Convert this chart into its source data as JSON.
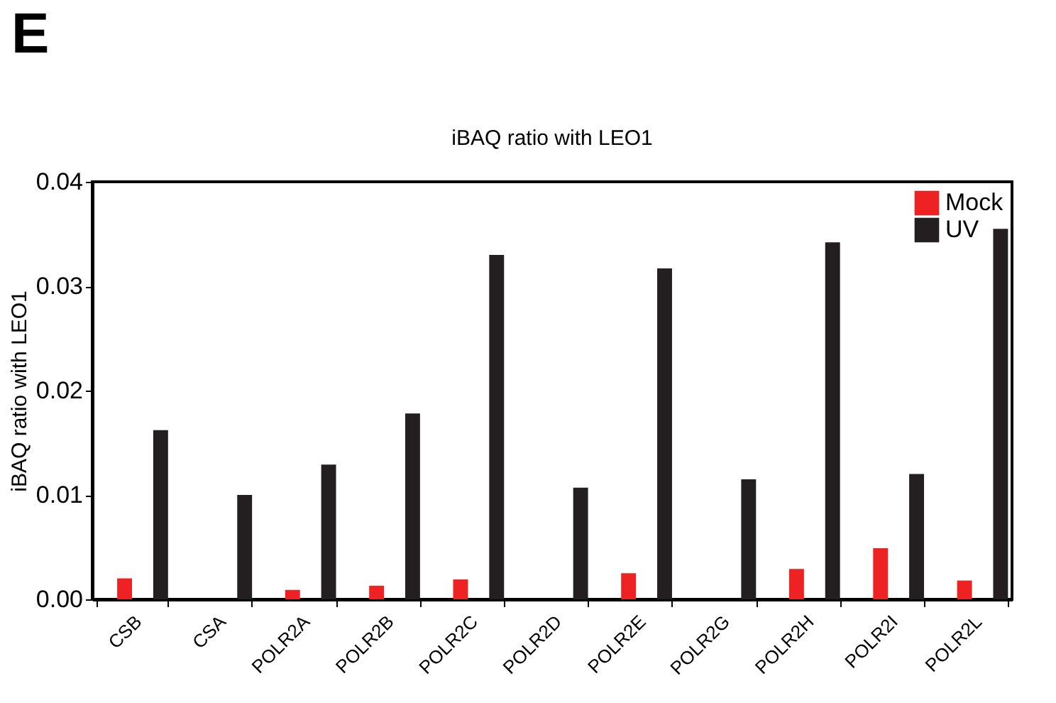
{
  "chart_data": {
    "type": "bar",
    "title": "iBAQ ratio with LEO1",
    "ylabel": "iBAQ ratio with LEO1",
    "annotations": [
      "E"
    ],
    "categories": [
      "CSB",
      "CSA",
      "POLR2A",
      "POLR2B",
      "POLR2C",
      "POLR2D",
      "POLR2E",
      "POLR2G",
      "POLR2H",
      "POLR2I",
      "POLR2L"
    ],
    "series": [
      {
        "name": "Mock",
        "color": "#ee2222",
        "values": [
          0.002,
          0,
          0.0009,
          0.0013,
          0.0019,
          0,
          0.0025,
          0,
          0.0029,
          0.0049,
          0.0018
        ]
      },
      {
        "name": "UV",
        "color": "#231f20",
        "values": [
          0.0162,
          0.01,
          0.0129,
          0.0178,
          0.033,
          0.0107,
          0.0317,
          0.0115,
          0.0342,
          0.012,
          0.0355
        ]
      }
    ],
    "ylim": [
      0,
      0.04
    ],
    "yticks": [
      {
        "value": 0,
        "label": "0.00"
      },
      {
        "value": 0.01,
        "label": "0.01"
      },
      {
        "value": 0.02,
        "label": "0.02"
      },
      {
        "value": 0.03,
        "label": "0.03"
      },
      {
        "value": 0.04,
        "label": "0.04"
      }
    ],
    "grid": false,
    "legend": "top right"
  }
}
